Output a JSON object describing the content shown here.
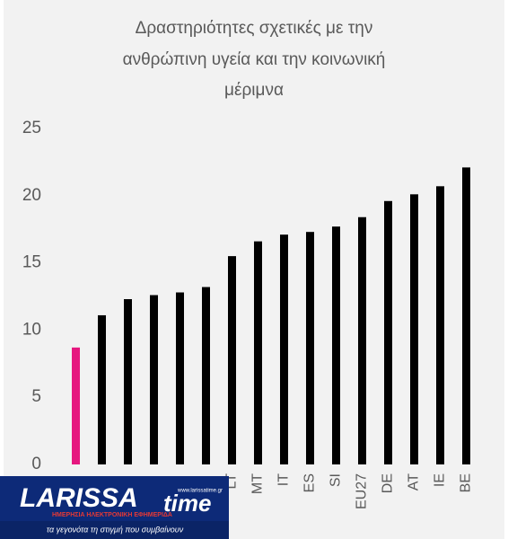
{
  "chart_data": {
    "type": "bar",
    "title": [
      "Δραστηριότητες σχετικές με την",
      "ανθρώπινη υγεία και την κοινωνική",
      "μέριμνα"
    ],
    "categories": [
      null,
      null,
      null,
      null,
      null,
      null,
      "LT",
      "MT",
      "IT",
      "ES",
      "SI",
      "EU27",
      "DE",
      "AT",
      "IE",
      "BE"
    ],
    "values": [
      8.7,
      11.1,
      12.3,
      12.6,
      12.8,
      13.2,
      15.5,
      16.6,
      17.1,
      17.3,
      17.7,
      18.4,
      19.6,
      20.1,
      20.7,
      22.1
    ],
    "colors": [
      "#e6177f",
      "#000000",
      "#000000",
      "#000000",
      "#000000",
      "#000000",
      "#000000",
      "#000000",
      "#000000",
      "#000000",
      "#000000",
      "#000000",
      "#000000",
      "#000000",
      "#000000",
      "#000000"
    ],
    "ylim": [
      0,
      25
    ],
    "yticks": [
      0,
      5,
      10,
      15,
      20,
      25
    ],
    "grid": false
  },
  "logo": {
    "brand": "LARISSA",
    "brand2": "time",
    "url": "www.larissatime.gr",
    "subtitle": "ΗΜΕΡΗΣΙΑ ΗΛΕΚΤΡΟΝΙΚΗ ΕΦΗΜΕΡΙΔΑ",
    "slogan": "τα γεγονότα τη στιγμή που συμβαίνουν"
  }
}
